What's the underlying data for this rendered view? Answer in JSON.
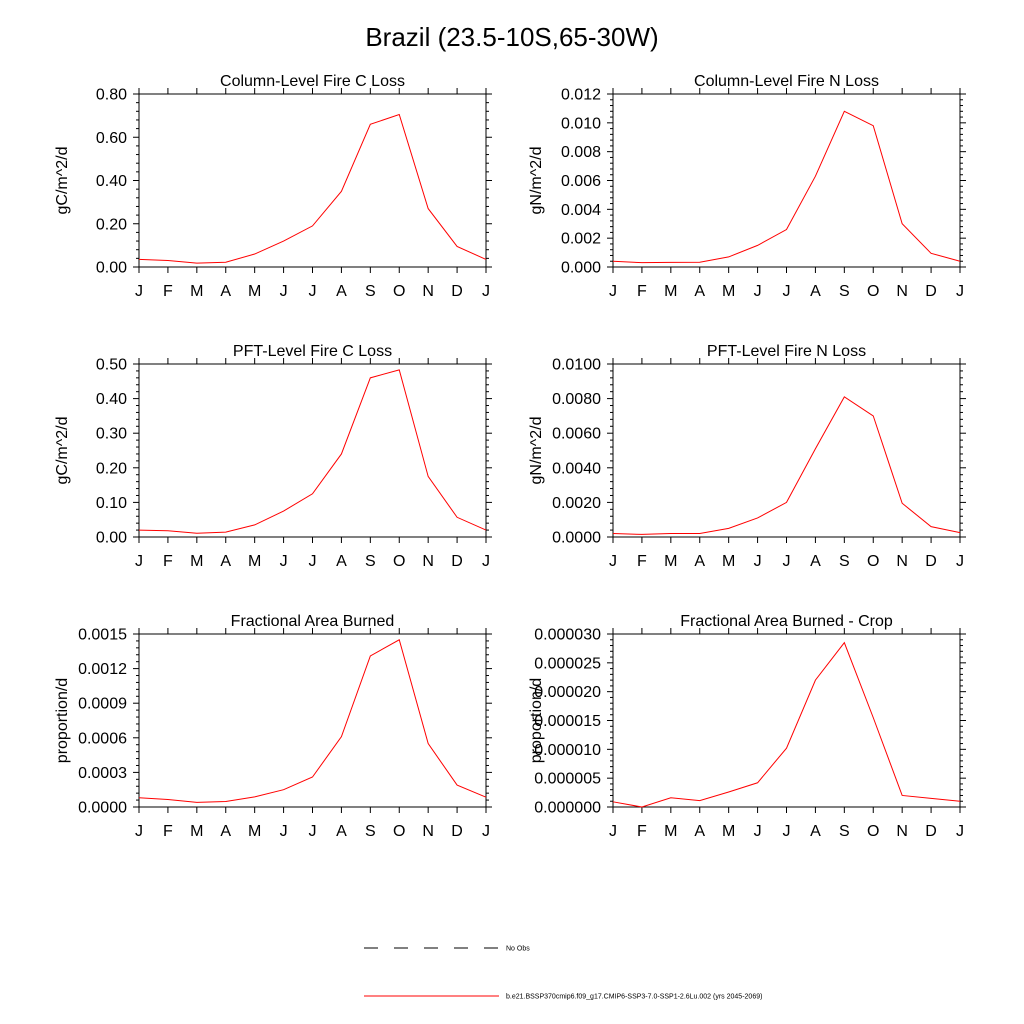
{
  "title": "Brazil (23.5-10S,65-30W)",
  "chart_data": [
    {
      "type": "line",
      "title": "Column-Level Fire C Loss",
      "ylabel": "gC/m^2/d",
      "categories": [
        "J",
        "F",
        "M",
        "A",
        "M",
        "J",
        "J",
        "A",
        "S",
        "O",
        "N",
        "D",
        "J"
      ],
      "ylim": [
        0,
        0.8
      ],
      "yticks": [
        "0.00",
        "0.20",
        "0.40",
        "0.60",
        "0.80"
      ],
      "series": [
        {
          "values": [
            0.035,
            0.03,
            0.018,
            0.022,
            0.06,
            0.12,
            0.19,
            0.35,
            0.66,
            0.705,
            0.27,
            0.095,
            0.035
          ]
        }
      ]
    },
    {
      "type": "line",
      "title": "Column-Level Fire N Loss",
      "ylabel": "gN/m^2/d",
      "categories": [
        "J",
        "F",
        "M",
        "A",
        "M",
        "J",
        "J",
        "A",
        "S",
        "O",
        "N",
        "D",
        "J"
      ],
      "ylim": [
        0,
        0.012
      ],
      "yticks": [
        "0.000",
        "0.002",
        "0.004",
        "0.006",
        "0.008",
        "0.010",
        "0.012"
      ],
      "series": [
        {
          "values": [
            0.0004,
            0.0003,
            0.00032,
            0.00033,
            0.0007,
            0.0015,
            0.0026,
            0.0063,
            0.0108,
            0.0098,
            0.003,
            0.00095,
            0.0004
          ]
        }
      ]
    },
    {
      "type": "line",
      "title": "PFT-Level Fire C Loss",
      "ylabel": "gC/m^2/d",
      "categories": [
        "J",
        "F",
        "M",
        "A",
        "M",
        "J",
        "J",
        "A",
        "S",
        "O",
        "N",
        "D",
        "J"
      ],
      "ylim": [
        0,
        0.5
      ],
      "yticks": [
        "0.00",
        "0.10",
        "0.20",
        "0.30",
        "0.40",
        "0.50"
      ],
      "series": [
        {
          "values": [
            0.02,
            0.018,
            0.011,
            0.014,
            0.035,
            0.075,
            0.125,
            0.24,
            0.46,
            0.483,
            0.175,
            0.057,
            0.02
          ]
        }
      ]
    },
    {
      "type": "line",
      "title": "PFT-Level Fire N Loss",
      "ylabel": "gN/m^2/d",
      "categories": [
        "J",
        "F",
        "M",
        "A",
        "M",
        "J",
        "J",
        "A",
        "S",
        "O",
        "N",
        "D",
        "J"
      ],
      "ylim": [
        0,
        0.01
      ],
      "yticks": [
        "0.0000",
        "0.0020",
        "0.0040",
        "0.0060",
        "0.0080",
        "0.0100"
      ],
      "series": [
        {
          "values": [
            0.0002,
            0.00015,
            0.0002,
            0.0002,
            0.0005,
            0.0011,
            0.002,
            0.0051,
            0.0081,
            0.007,
            0.00195,
            0.0006,
            0.00025
          ]
        }
      ]
    },
    {
      "type": "line",
      "title": "Fractional Area Burned",
      "ylabel": "proportion/d",
      "categories": [
        "J",
        "F",
        "M",
        "A",
        "M",
        "J",
        "J",
        "A",
        "S",
        "O",
        "N",
        "D",
        "J"
      ],
      "ylim": [
        0,
        0.0015
      ],
      "yticks": [
        "0.0000",
        "0.0003",
        "0.0006",
        "0.0009",
        "0.0012",
        "0.0015"
      ],
      "series": [
        {
          "values": [
            8e-05,
            6.5e-05,
            4e-05,
            4.8e-05,
            8.8e-05,
            0.00015,
            0.00026,
            0.00061,
            0.00131,
            0.00145,
            0.00055,
            0.00019,
            8.5e-05
          ]
        }
      ]
    },
    {
      "type": "line",
      "title": "Fractional Area Burned - Crop",
      "ylabel": "proportion/d",
      "categories": [
        "J",
        "F",
        "M",
        "A",
        "M",
        "J",
        "J",
        "A",
        "S",
        "O",
        "N",
        "D",
        "J"
      ],
      "ylim": [
        0,
        3e-05
      ],
      "yticks": [
        "0.000000",
        "0.000005",
        "0.000010",
        "0.000015",
        "0.000020",
        "0.000025",
        "0.000030"
      ],
      "series": [
        {
          "values": [
            9e-07,
            0.0,
            1.6e-06,
            1.1e-06,
            2.6e-06,
            4.2e-06,
            1.02e-05,
            2.2e-05,
            2.85e-05,
            1.55e-05,
            2e-06,
            1.5e-06,
            1e-06
          ]
        }
      ]
    }
  ],
  "legend": {
    "items": [
      {
        "label": "No Obs",
        "style": "dashed",
        "color": "#000000"
      },
      {
        "label": "b.e21.BSSP370cmip6.f09_g17.CMIP6-SSP3-7.0-SSP1-2.6Lu.002 (yrs 2045-2069)",
        "style": "solid",
        "color": "#ff0000"
      }
    ]
  },
  "colors": {
    "series": "#ff0000",
    "axes": "#000000"
  }
}
